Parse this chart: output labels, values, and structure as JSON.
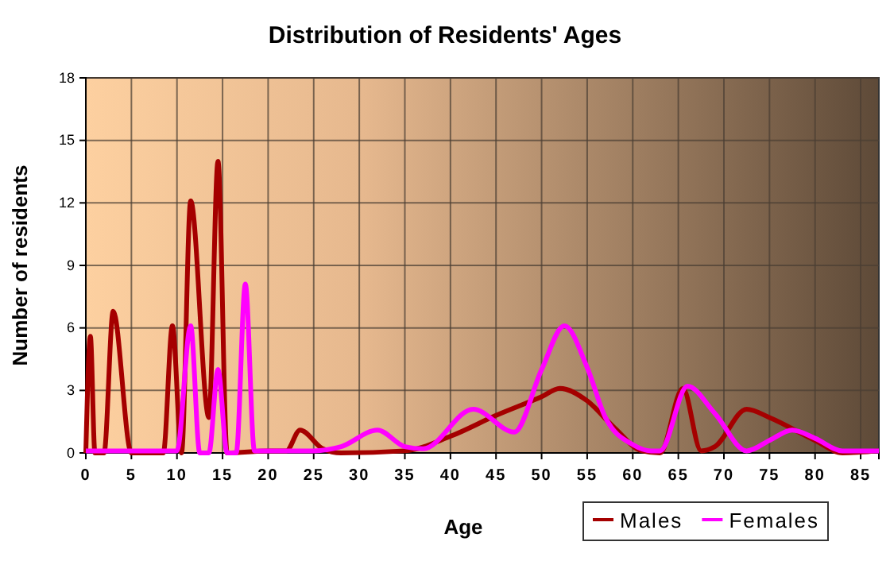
{
  "chart_data": {
    "type": "line",
    "title": "Distribution of Residents' Ages",
    "xlabel": "Age",
    "ylabel": "Number of residents",
    "xlim": [
      0,
      87
    ],
    "xticks": [
      0,
      5,
      10,
      15,
      20,
      25,
      30,
      35,
      40,
      45,
      50,
      55,
      60,
      65,
      70,
      75,
      80,
      85
    ],
    "ylim": [
      0,
      18
    ],
    "yticks": [
      0,
      3,
      6,
      9,
      12,
      15,
      18
    ],
    "grid": true,
    "legend": "bottom right",
    "line_style": "solid",
    "marker": "none",
    "series": [
      {
        "name": "Males",
        "color": "#a50000",
        "x": [
          0,
          0.5,
          1,
          2,
          3,
          5,
          8.5,
          9.5,
          10.5,
          11.5,
          13.5,
          14.5,
          15.5,
          20,
          22,
          23.5,
          26,
          28,
          35,
          40,
          45,
          50,
          52,
          55,
          58,
          61,
          63,
          65.5,
          67.5,
          69,
          72.5,
          75,
          80,
          83,
          87
        ],
        "values": [
          0,
          5.6,
          0,
          0,
          6.8,
          0,
          0,
          6.1,
          0,
          12.1,
          1.7,
          14,
          0,
          0.1,
          0.1,
          1.1,
          0.2,
          0,
          0.1,
          0.8,
          1.8,
          2.7,
          3.1,
          2.5,
          1.2,
          0.1,
          0,
          3.1,
          0.1,
          0.3,
          2.1,
          1.7,
          0.6,
          0,
          0.1
        ]
      },
      {
        "name": "Females",
        "color": "#ff00ff",
        "x": [
          0,
          10,
          11.5,
          12.5,
          13.5,
          14.5,
          15.5,
          16.5,
          17.5,
          18.5,
          20,
          25,
          28,
          32,
          35,
          37,
          42.5,
          47,
          50,
          52.5,
          55,
          57,
          60,
          62,
          63,
          66,
          69,
          72.5,
          75,
          77.5,
          80,
          83,
          87
        ],
        "values": [
          0.1,
          0.1,
          6.1,
          0,
          0,
          4,
          0,
          0,
          8.1,
          0.1,
          0.1,
          0.1,
          0.3,
          1.1,
          0.3,
          0.2,
          2.1,
          1,
          4,
          6.1,
          4.1,
          1.7,
          0.4,
          0.1,
          0.1,
          3.2,
          1.9,
          0.1,
          0.6,
          1.1,
          0.7,
          0.1,
          0.1
        ]
      }
    ]
  }
}
